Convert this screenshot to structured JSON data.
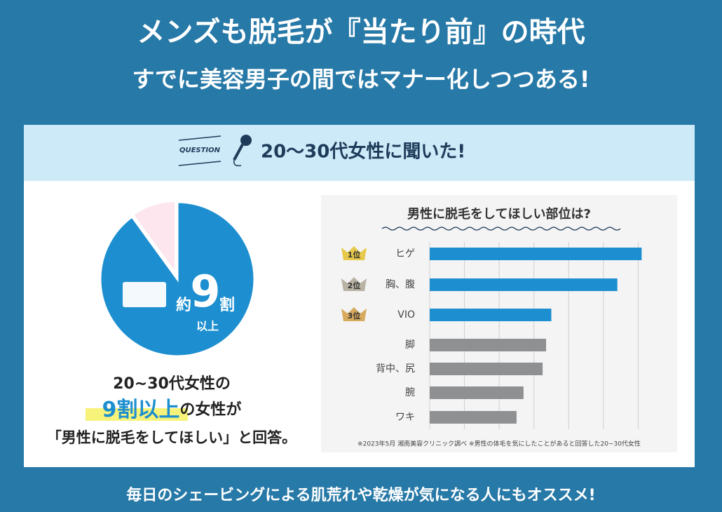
{
  "header": {
    "title": "メンズも脱毛が『当たり前』の時代",
    "subtitle": "すでに美容男子の間ではマナー化しつつある!"
  },
  "question": {
    "label": "QUESTION",
    "text": "20〜30代女性に聞いた!"
  },
  "chart_data": [
    {
      "type": "pie",
      "values": [
        90,
        10
      ],
      "colors": [
        "#1d8fd0",
        "#fde6ee"
      ],
      "annotations": [
        "約",
        "9",
        "割",
        "以上"
      ]
    },
    {
      "type": "bar",
      "title": "男性に脱毛をしてほしい部位は?",
      "categories": [
        "ヒゲ",
        "胸、腹",
        "VIO",
        "脚",
        "背中、尻",
        "腕",
        "ワキ"
      ],
      "ranks": [
        "1位",
        "2位",
        "3位"
      ],
      "values": [
        6.1,
        5.4,
        3.5,
        3.35,
        3.25,
        2.7,
        2.5
      ],
      "colors": [
        "#1d8fd0",
        "#1d8fd0",
        "#1d8fd0",
        "#8f9091",
        "#8f9091",
        "#8f9091",
        "#8f9091"
      ],
      "xlim": [
        0,
        7
      ],
      "xticks": [
        0,
        1,
        2,
        3,
        4,
        5,
        6
      ],
      "grid": true,
      "note": "※2023年5月 湘南美容クリニック調べ ※男性の体毛を気にしたことがあると回答した20~30代女性"
    }
  ],
  "caption": {
    "line1": "20~30代女性の",
    "highlight": "9割以上",
    "line2": "の女性が",
    "line3": "「男性に脱毛をしてほしい」と回答。"
  },
  "footer": "毎日のシェービングによる肌荒れや乾燥が気になる人にもオススメ!"
}
